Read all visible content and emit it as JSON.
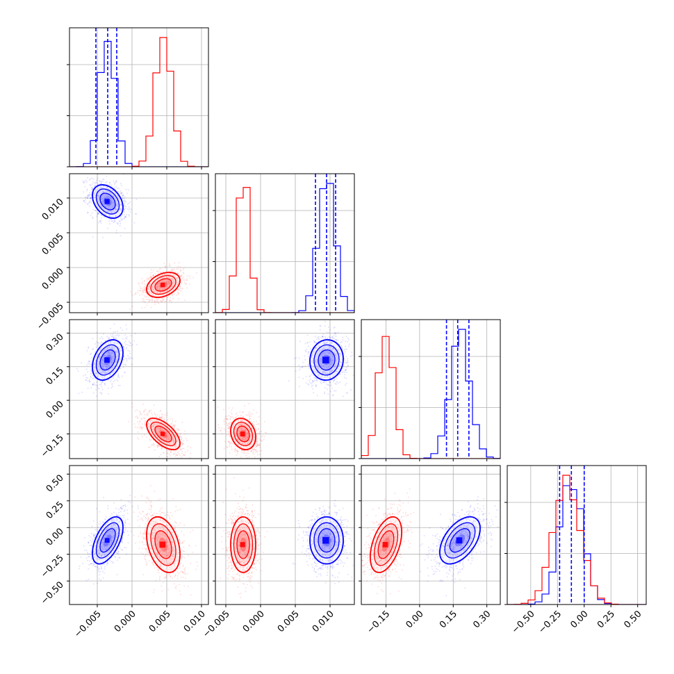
{
  "chart_data": {
    "type": "corner",
    "title": "",
    "grid": true,
    "parameters": [
      {
        "range": [
          -0.009,
          0.011
        ],
        "ticks": [
          -0.005,
          0.0,
          0.005,
          0.01
        ],
        "tick_labels": [
          "−0.005",
          "0.000",
          "0.005",
          "0.010"
        ]
      },
      {
        "range": [
          -0.0065,
          0.0135
        ],
        "ticks": [
          -0.005,
          0.0,
          0.005,
          0.01
        ],
        "tick_labels": [
          "−0.005",
          "0.000",
          "0.005",
          "0.010"
        ]
      },
      {
        "range": [
          -0.26,
          0.36
        ],
        "ticks": [
          -0.15,
          0.0,
          0.15,
          0.3
        ],
        "tick_labels": [
          "−0.15",
          "0.00",
          "0.15",
          "0.30"
        ]
      },
      {
        "range": [
          -0.72,
          0.58
        ],
        "ticks": [
          -0.5,
          -0.25,
          0.0,
          0.25,
          0.5
        ],
        "tick_labels": [
          "−0.50",
          "−0.25",
          "0.00",
          "0.25",
          "0.50"
        ]
      }
    ],
    "series": [
      {
        "color": "#0000ff",
        "mean": [
          -0.0035,
          0.0095,
          0.18,
          -0.12
        ],
        "std": [
          0.0011,
          0.0012,
          0.045,
          0.11
        ],
        "correlations": {
          "0-1": -0.35,
          "0-2": 0.35,
          "0-3": 0.55,
          "1-2": 0.05,
          "1-3": 0.0,
          "2-3": 0.5
        },
        "quantiles": [
          [
            -0.0052,
            -0.0035,
            -0.0022
          ],
          [
            0.0079,
            0.0095,
            0.0108
          ],
          [
            0.12,
            0.17,
            0.22
          ],
          [
            -0.23,
            -0.12,
            0.0
          ]
        ]
      },
      {
        "color": "#ff0000",
        "mean": [
          0.0045,
          -0.0025,
          -0.15,
          -0.16
        ],
        "std": [
          0.0012,
          0.0009,
          0.035,
          0.13
        ],
        "correlations": {
          "0-1": 0.35,
          "0-2": -0.6,
          "0-3": -0.35,
          "1-2": -0.2,
          "1-3": 0.0,
          "2-3": 0.45
        }
      }
    ]
  }
}
